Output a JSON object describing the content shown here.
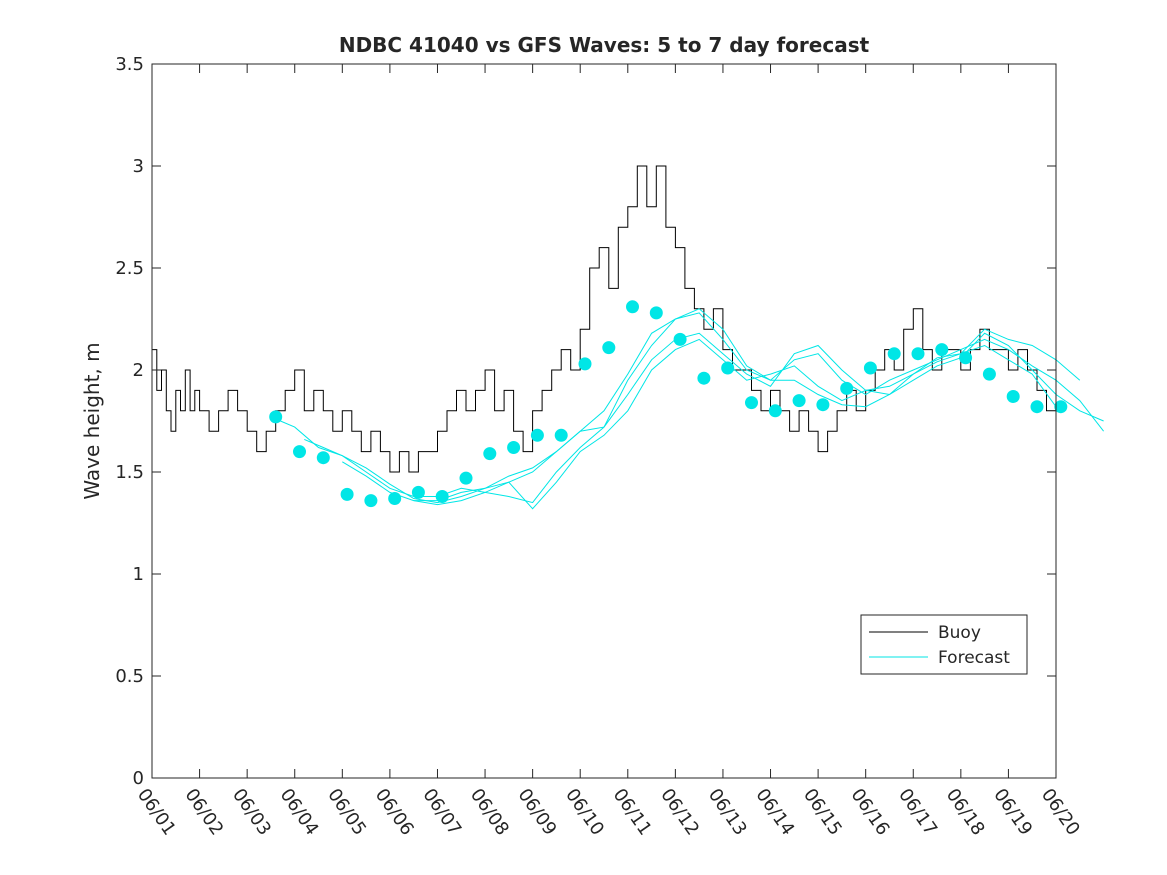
{
  "colors": {
    "buoy": "#000000",
    "forecast": "#00e6e6",
    "axis": "#262626",
    "background": "#ffffff"
  },
  "chart_data": {
    "type": "line",
    "title": "NDBC 41040 vs GFS Waves: 5 to 7 day forecast",
    "xlabel": "",
    "ylabel": "Wave height, m",
    "grid": false,
    "legend_position": "bottom-right",
    "x_type": "date",
    "year": null,
    "xlim": [
      "06/01",
      "06/20"
    ],
    "ylim": [
      0,
      3.5
    ],
    "x_ticks": [
      "06/01",
      "06/02",
      "06/03",
      "06/04",
      "06/05",
      "06/06",
      "06/07",
      "06/08",
      "06/09",
      "06/10",
      "06/11",
      "06/12",
      "06/13",
      "06/14",
      "06/15",
      "06/16",
      "06/17",
      "06/18",
      "06/19",
      "06/20"
    ],
    "y_ticks": [
      0,
      0.5,
      1,
      1.5,
      2,
      2.5,
      3,
      3.5
    ],
    "y_tick_labels": [
      "0",
      "0.5",
      "1",
      "1.5",
      "2",
      "2.5",
      "3",
      "3.5"
    ],
    "legend": [
      {
        "label": "Buoy",
        "color": "#000000"
      },
      {
        "label": "Forecast",
        "color": "#00e6e6"
      }
    ],
    "series": [
      {
        "name": "Buoy",
        "style": "step-line",
        "color": "#000000",
        "x_days": [
          0.0,
          0.1,
          0.2,
          0.3,
          0.4,
          0.5,
          0.6,
          0.7,
          0.8,
          0.9,
          1.0,
          1.2,
          1.4,
          1.6,
          1.8,
          2.0,
          2.2,
          2.4,
          2.6,
          2.8,
          3.0,
          3.2,
          3.4,
          3.6,
          3.8,
          4.0,
          4.2,
          4.4,
          4.6,
          4.8,
          5.0,
          5.2,
          5.4,
          5.6,
          5.8,
          6.0,
          6.2,
          6.4,
          6.6,
          6.8,
          7.0,
          7.2,
          7.4,
          7.6,
          7.8,
          8.0,
          8.2,
          8.4,
          8.6,
          8.8,
          9.0,
          9.2,
          9.4,
          9.6,
          9.8,
          10.0,
          10.2,
          10.4,
          10.6,
          10.8,
          11.0,
          11.2,
          11.4,
          11.6,
          11.8,
          12.0,
          12.2,
          12.4,
          12.6,
          12.8,
          13.0,
          13.2,
          13.4,
          13.6,
          13.8,
          14.0,
          14.2,
          14.4,
          14.6,
          14.8,
          15.0,
          15.2,
          15.4,
          15.6,
          15.8,
          16.0,
          16.2,
          16.4,
          16.6,
          16.8,
          17.0,
          17.2,
          17.4,
          17.6,
          17.8,
          18.0,
          18.2,
          18.4,
          18.6,
          18.8,
          19.0
        ],
        "values": [
          2.1,
          1.9,
          2.0,
          1.8,
          1.7,
          1.9,
          1.8,
          2.0,
          1.8,
          1.9,
          1.8,
          1.7,
          1.8,
          1.9,
          1.8,
          1.7,
          1.6,
          1.7,
          1.8,
          1.9,
          2.0,
          1.8,
          1.9,
          1.8,
          1.7,
          1.8,
          1.7,
          1.6,
          1.7,
          1.6,
          1.5,
          1.6,
          1.5,
          1.6,
          1.6,
          1.7,
          1.8,
          1.9,
          1.8,
          1.9,
          2.0,
          1.8,
          1.9,
          1.7,
          1.6,
          1.8,
          1.9,
          2.0,
          2.1,
          2.0,
          2.2,
          2.5,
          2.6,
          2.4,
          2.7,
          2.8,
          3.0,
          2.8,
          3.0,
          2.7,
          2.6,
          2.4,
          2.3,
          2.2,
          2.3,
          2.1,
          2.0,
          2.0,
          1.9,
          1.8,
          1.9,
          1.8,
          1.7,
          1.8,
          1.7,
          1.6,
          1.7,
          1.8,
          1.9,
          1.8,
          1.9,
          2.0,
          2.1,
          2.0,
          2.2,
          2.3,
          2.1,
          2.0,
          2.1,
          2.1,
          2.0,
          2.1,
          2.2,
          2.1,
          2.1,
          2.0,
          2.1,
          2.0,
          1.9,
          1.8,
          1.8
        ]
      },
      {
        "name": "Forecast",
        "style": "lines",
        "color": "#00e6e6",
        "runs": [
          {
            "x_days": [
              2.6,
              3.0,
              3.5,
              4.0,
              4.5,
              5.0,
              5.5,
              6.0,
              6.5,
              7.0,
              7.5,
              8.0,
              8.5,
              9.0,
              9.5,
              10.0,
              10.5,
              11.0,
              11.5,
              12.0,
              12.5,
              13.0,
              13.5,
              14.0,
              14.5,
              15.0,
              15.5,
              16.0,
              16.5,
              17.0,
              17.5,
              18.0,
              18.5,
              19.0
            ],
            "values": [
              1.76,
              1.72,
              1.62,
              1.58,
              1.5,
              1.42,
              1.38,
              1.38,
              1.42,
              1.4,
              1.45,
              1.5,
              1.6,
              1.7,
              1.72,
              1.95,
              2.12,
              2.25,
              2.3,
              2.2,
              2.02,
              1.95,
              1.95,
              1.88,
              1.83,
              1.82,
              1.88,
              1.98,
              2.06,
              2.08,
              2.12,
              2.05,
              1.98,
              1.82
            ]
          },
          {
            "x_days": [
              3.2,
              3.6,
              4.0,
              4.5,
              5.0,
              5.5,
              6.0,
              6.5,
              7.0,
              7.5,
              8.0,
              8.5,
              9.0,
              9.5,
              10.0,
              10.5,
              11.0,
              11.5,
              12.0,
              12.5,
              13.0,
              13.5,
              14.0,
              14.5,
              15.0,
              15.5,
              16.0,
              16.5,
              17.0,
              17.5,
              18.0,
              18.5,
              19.0,
              19.5,
              20.0
            ],
            "values": [
              1.66,
              1.62,
              1.58,
              1.52,
              1.44,
              1.37,
              1.35,
              1.38,
              1.42,
              1.48,
              1.52,
              1.6,
              1.7,
              1.8,
              1.98,
              2.18,
              2.25,
              2.28,
              2.15,
              2.0,
              1.95,
              2.05,
              2.08,
              1.95,
              1.88,
              1.95,
              2.0,
              2.05,
              2.1,
              2.15,
              2.1,
              2.02,
              1.95,
              1.85,
              1.7
            ]
          },
          {
            "x_days": [
              4.0,
              4.5,
              5.0,
              5.5,
              6.0,
              6.5,
              7.0,
              7.5,
              8.0,
              8.5,
              9.0,
              9.5,
              10.0,
              10.5,
              11.0,
              11.5,
              12.0,
              12.5,
              13.0,
              13.5,
              14.0,
              14.5,
              15.0,
              15.5,
              16.0,
              16.5,
              17.0,
              17.5,
              18.0,
              18.5,
              19.0,
              19.5
            ],
            "values": [
              1.55,
              1.48,
              1.4,
              1.36,
              1.34,
              1.36,
              1.4,
              1.38,
              1.35,
              1.5,
              1.62,
              1.72,
              1.88,
              2.05,
              2.15,
              2.18,
              2.08,
              1.98,
              1.92,
              2.08,
              2.12,
              2.0,
              1.9,
              1.92,
              1.98,
              2.04,
              2.08,
              2.2,
              2.15,
              2.12,
              2.05,
              1.95
            ]
          },
          {
            "x_days": [
              5.5,
              6.0,
              6.5,
              7.0,
              7.5,
              8.0,
              8.5,
              9.0,
              9.5,
              10.0,
              10.5,
              11.0,
              11.5,
              12.0,
              12.5,
              13.0,
              13.5,
              14.0,
              14.5,
              15.0,
              15.5,
              16.0,
              16.5,
              17.0,
              17.5,
              18.0,
              18.5,
              19.0,
              19.5,
              20.0
            ],
            "values": [
              1.36,
              1.36,
              1.4,
              1.42,
              1.45,
              1.32,
              1.45,
              1.6,
              1.68,
              1.8,
              2.0,
              2.1,
              2.15,
              2.05,
              1.95,
              1.98,
              2.02,
              1.92,
              1.85,
              1.9,
              1.88,
              1.95,
              2.02,
              2.06,
              2.18,
              2.12,
              2.0,
              1.88,
              1.8,
              1.75
            ]
          }
        ],
        "markers": {
          "x_days": [
            2.6,
            3.1,
            3.6,
            4.1,
            4.6,
            5.1,
            5.6,
            6.1,
            6.6,
            7.1,
            7.6,
            8.1,
            8.6,
            9.1,
            9.6,
            10.1,
            10.6,
            11.1,
            11.6,
            12.1,
            12.6,
            13.1,
            13.6,
            14.1,
            14.6,
            15.1,
            15.6,
            16.1,
            16.6,
            17.1,
            17.6,
            18.1,
            18.6,
            19.1
          ],
          "values": [
            1.77,
            1.6,
            1.57,
            1.39,
            1.36,
            1.37,
            1.4,
            1.38,
            1.47,
            1.59,
            1.62,
            1.68,
            1.68,
            2.03,
            2.11,
            2.31,
            2.28,
            2.15,
            1.96,
            2.01,
            1.84,
            1.8,
            1.85,
            1.83,
            1.91,
            2.01,
            2.08,
            2.08,
            2.1,
            2.06,
            1.98,
            1.87,
            1.82,
            1.82
          ]
        }
      }
    ]
  }
}
